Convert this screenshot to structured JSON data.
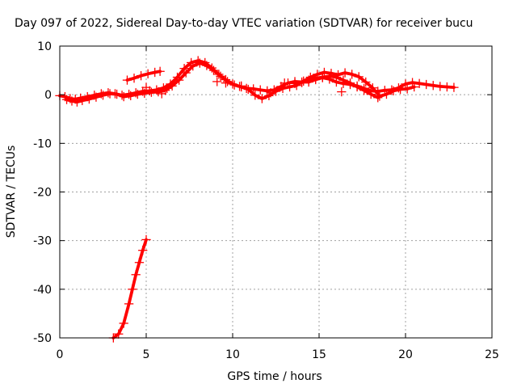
{
  "chart_data": {
    "type": "scatter",
    "title": "Day 097 of 2022, Sidereal Day-to-day VTEC variation (SDTVAR) for receiver bucu",
    "xlabel": "GPS time / hours",
    "ylabel": "SDTVAR / TECUs",
    "xlim": [
      0,
      25
    ],
    "ylim": [
      -50,
      10
    ],
    "xticks": [
      0,
      5,
      10,
      15,
      20,
      25
    ],
    "yticks": [
      -50,
      -40,
      -30,
      -20,
      -10,
      0,
      10
    ],
    "xtick_labels": [
      "0",
      "5",
      "10",
      "15",
      "20",
      "25"
    ],
    "ytick_labels": [
      "-50",
      "-40",
      "-30",
      "-20",
      "-10",
      "0",
      "10"
    ],
    "grid": true,
    "legend": "none",
    "marker": "plus",
    "color": "#ff0000",
    "series": [
      {
        "name": "main-trace-a",
        "x": [
          0.0,
          0.3,
          0.6,
          0.9,
          1.2,
          1.6,
          2.0,
          2.4,
          2.8,
          3.2,
          3.6,
          4.0,
          4.4,
          4.8,
          5.2,
          5.6,
          6.0,
          6.4,
          6.8,
          7.2,
          7.6,
          8.0,
          8.4,
          8.8,
          9.2,
          9.6,
          10.0,
          10.4,
          10.8,
          11.2,
          11.6,
          12.0,
          12.4,
          12.8,
          13.2,
          13.6,
          14.0,
          14.4,
          14.8,
          15.2,
          15.6,
          16.0,
          16.4,
          16.8,
          17.2,
          17.6,
          18.0,
          18.4,
          18.8,
          19.2,
          19.6,
          20.0,
          20.4,
          20.8,
          21.2,
          21.6,
          22.0,
          22.4,
          22.8
        ],
        "y": [
          -0.2,
          -0.4,
          -0.8,
          -0.9,
          -0.7,
          -0.4,
          -0.1,
          0.2,
          0.4,
          0.2,
          -0.1,
          0.1,
          0.4,
          0.7,
          0.8,
          1.0,
          1.4,
          2.2,
          3.6,
          5.4,
          6.6,
          7.0,
          6.6,
          5.5,
          4.2,
          3.1,
          2.2,
          1.7,
          1.3,
          1.2,
          1.0,
          0.8,
          1.0,
          1.7,
          2.4,
          2.7,
          2.6,
          2.6,
          3.1,
          3.5,
          3.2,
          2.6,
          2.3,
          2.1,
          1.8,
          1.3,
          0.8,
          0.7,
          0.9,
          1.0,
          1.4,
          2.2,
          2.5,
          2.3,
          2.1,
          1.9,
          1.7,
          1.6,
          1.5
        ]
      },
      {
        "name": "main-trace-b",
        "x": [
          0.4,
          0.7,
          1.0,
          1.3,
          1.7,
          2.1,
          2.5,
          2.9,
          3.3,
          3.7,
          4.1,
          4.5,
          4.9,
          5.3,
          5.7,
          6.1,
          6.5,
          6.9,
          7.3,
          7.7,
          8.1,
          8.5,
          8.9,
          9.3,
          9.7,
          10.1,
          10.5,
          10.9,
          11.3,
          11.7,
          12.1,
          12.5,
          12.9,
          13.3,
          13.7,
          14.1,
          14.5,
          14.9,
          15.3,
          15.7,
          16.1,
          16.5,
          16.9,
          17.3,
          17.7,
          18.1,
          18.5,
          18.9,
          19.3,
          19.7,
          20.1,
          20.5
        ],
        "y": [
          -1.0,
          -1.3,
          -1.5,
          -1.2,
          -0.9,
          -0.5,
          -0.1,
          0.2,
          0.1,
          -0.4,
          -0.2,
          0.1,
          0.3,
          0.5,
          0.6,
          0.9,
          1.8,
          3.0,
          4.5,
          5.9,
          6.5,
          6.0,
          5.0,
          3.8,
          2.7,
          2.0,
          1.6,
          1.1,
          -0.1,
          -0.8,
          -0.2,
          0.7,
          1.3,
          1.6,
          1.9,
          2.8,
          3.6,
          4.2,
          4.6,
          4.4,
          4.1,
          4.5,
          4.2,
          3.7,
          2.6,
          1.4,
          -0.3,
          0.1,
          0.8,
          1.1,
          1.2,
          1.6
        ]
      },
      {
        "name": "upper-arc",
        "x": [
          3.9,
          4.3,
          4.7,
          5.1,
          5.5,
          5.8
        ],
        "y": [
          3.0,
          3.4,
          3.9,
          4.3,
          4.6,
          4.8
        ]
      },
      {
        "name": "mid-hump",
        "x": [
          13.6,
          14.0,
          14.4,
          14.8,
          15.2,
          15.6,
          16.0,
          16.4,
          16.8,
          17.2,
          17.6,
          18.0,
          18.4
        ],
        "y": [
          2.3,
          2.5,
          3.0,
          3.4,
          3.6,
          3.8,
          3.6,
          3.0,
          2.4,
          1.6,
          0.9,
          0.1,
          -0.6
        ]
      },
      {
        "name": "steep-trace",
        "x": [
          3.1,
          3.4,
          3.7,
          4.0,
          4.2,
          4.4,
          4.6,
          4.8,
          5.0
        ],
        "y": [
          -50.0,
          -49.2,
          -47.0,
          -43.0,
          -40.0,
          -37.0,
          -34.5,
          -32.0,
          -29.8
        ]
      },
      {
        "name": "sparse-points",
        "x": [
          5.0,
          5.9,
          6.2,
          9.1,
          9.6,
          10.5,
          12.2,
          13.0,
          16.3
        ],
        "y": [
          1.5,
          0.2,
          1.3,
          2.7,
          2.4,
          1.8,
          0.4,
          2.4,
          0.6
        ]
      }
    ]
  }
}
